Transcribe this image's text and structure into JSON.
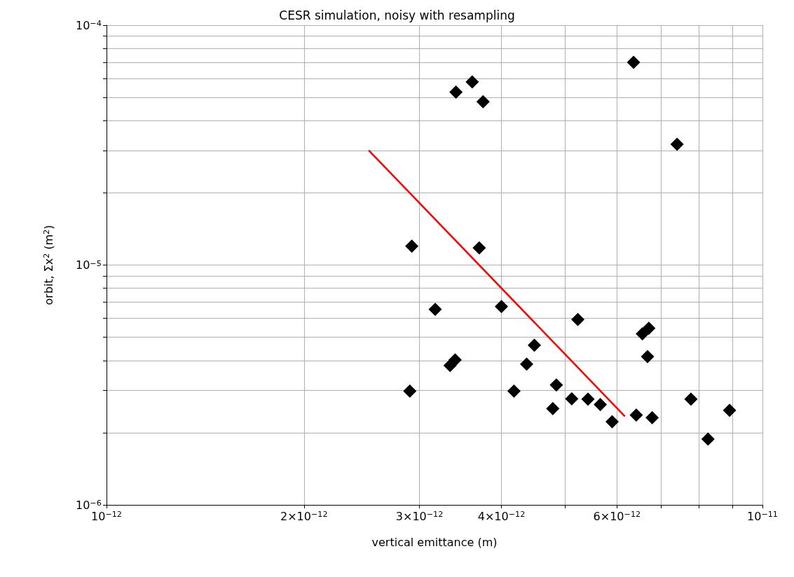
{
  "chart_data": {
    "type": "scatter",
    "title": "CESR simulation, noisy with resampling",
    "xlabel": "vertical emittance (m)",
    "ylabel": "orbit, Σx$^{2}$ (m$^{2}$)",
    "log": "xy",
    "grid": true,
    "xlim": [
      1e-12,
      1e-11
    ],
    "ylim": [
      1e-06,
      0.0001
    ],
    "xticks": [
      {
        "value": 1e-12,
        "label": "10$^{−12}$"
      },
      {
        "value": 2e-12,
        "label": "2×10$^{−12}$"
      },
      {
        "value": 3e-12,
        "label": "3×10$^{−12}$"
      },
      {
        "value": 4e-12,
        "label": "4×10$^{−12}$"
      },
      {
        "value": 5e-12,
        "label": null
      },
      {
        "value": 6e-12,
        "label": "6×10$^{−12}$"
      },
      {
        "value": 7e-12,
        "label": null
      },
      {
        "value": 8e-12,
        "label": null
      },
      {
        "value": 9e-12,
        "label": null
      },
      {
        "value": 1e-11,
        "label": "10$^{−11}$"
      }
    ],
    "yticks": [
      {
        "value": 1e-06,
        "label": "10$^{−6}$"
      },
      {
        "value": 2e-06,
        "label": null
      },
      {
        "value": 3e-06,
        "label": null
      },
      {
        "value": 4e-06,
        "label": null
      },
      {
        "value": 5e-06,
        "label": null
      },
      {
        "value": 6e-06,
        "label": null
      },
      {
        "value": 7e-06,
        "label": null
      },
      {
        "value": 8e-06,
        "label": null
      },
      {
        "value": 9e-06,
        "label": null
      },
      {
        "value": 1e-05,
        "label": "10$^{−5}$"
      },
      {
        "value": 2e-05,
        "label": null
      },
      {
        "value": 3e-05,
        "label": null
      },
      {
        "value": 4e-05,
        "label": null
      },
      {
        "value": 5e-05,
        "label": null
      },
      {
        "value": 6e-05,
        "label": null
      },
      {
        "value": 7e-05,
        "label": null
      },
      {
        "value": 8e-05,
        "label": null
      },
      {
        "value": 9e-05,
        "label": null
      },
      {
        "value": 0.0001,
        "label": "10$^{−4}$"
      }
    ],
    "series": [
      {
        "color": "#000000",
        "marker": "diamond",
        "x": [
          2.92e-12,
          2.9e-12,
          3.17e-12,
          3.34e-12,
          3.4e-12,
          3.41e-12,
          3.61e-12,
          3.75e-12,
          3.7e-12,
          4e-12,
          4.18e-12,
          4.37e-12,
          4.49e-12,
          4.79e-12,
          4.85e-12,
          5.12e-12,
          5.23e-12,
          5.42e-12,
          5.66e-12,
          5.9e-12,
          6.36e-12,
          6.42e-12,
          6.56e-12,
          6.71e-12,
          6.68e-12,
          6.79e-12,
          7.41e-12,
          7.78e-12,
          8.26e-12,
          8.91e-12
        ],
        "values": [
          1.2e-05,
          2.98e-06,
          6.54e-06,
          3.81e-06,
          4.02e-06,
          5.26e-05,
          5.8e-05,
          4.8e-05,
          1.18e-05,
          6.71e-06,
          2.98e-06,
          3.86e-06,
          4.63e-06,
          2.52e-06,
          3.16e-06,
          2.77e-06,
          5.93e-06,
          2.76e-06,
          2.62e-06,
          2.22e-06,
          7e-05,
          2.37e-06,
          5.17e-06,
          5.45e-06,
          4.15e-06,
          2.31e-06,
          3.19e-05,
          2.76e-06,
          1.88e-06,
          2.48e-06
        ]
      },
      {
        "type": "line",
        "marker": "none",
        "color": "#ff0000",
        "x": [
          2.51e-12,
          6.17e-12
        ],
        "values": [
          3.01e-05,
          2.34e-06
        ]
      }
    ]
  }
}
